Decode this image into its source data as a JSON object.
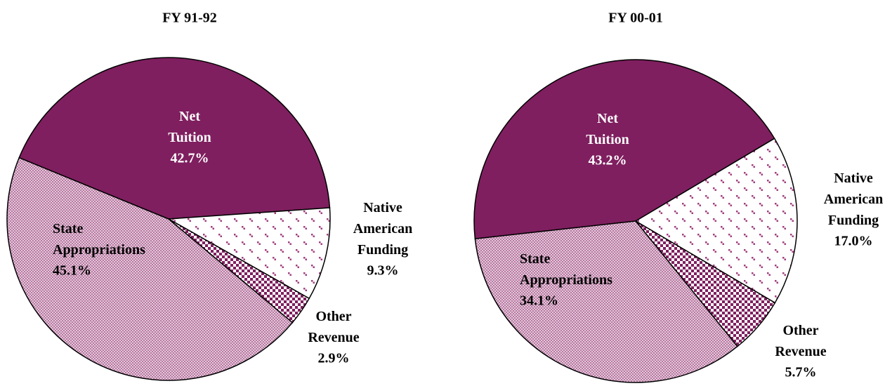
{
  "chart_data": [
    {
      "type": "pie",
      "title": "FY 91-92",
      "categories": [
        "Net Tuition",
        "Native American Funding",
        "Other Revenue",
        "State Appropriations"
      ],
      "values": [
        42.7,
        9.3,
        2.9,
        45.1
      ],
      "value_labels": [
        "42.7%",
        "9.3%",
        "2.9%",
        "45.1%"
      ],
      "colors": [
        "#7f1f5f",
        "#a04080",
        "#7f1f5f",
        "#b77ba3"
      ]
    },
    {
      "type": "pie",
      "title": "FY 00-01",
      "categories": [
        "Net Tuition",
        "Native American Funding",
        "Other Revenue",
        "State Appropriations"
      ],
      "values": [
        43.2,
        17.0,
        5.7,
        34.1
      ],
      "value_labels": [
        "43.2%",
        "17.0%",
        "5.7%",
        "34.1%"
      ],
      "colors": [
        "#7f1f5f",
        "#a04080",
        "#7f1f5f",
        "#b77ba3"
      ]
    }
  ]
}
